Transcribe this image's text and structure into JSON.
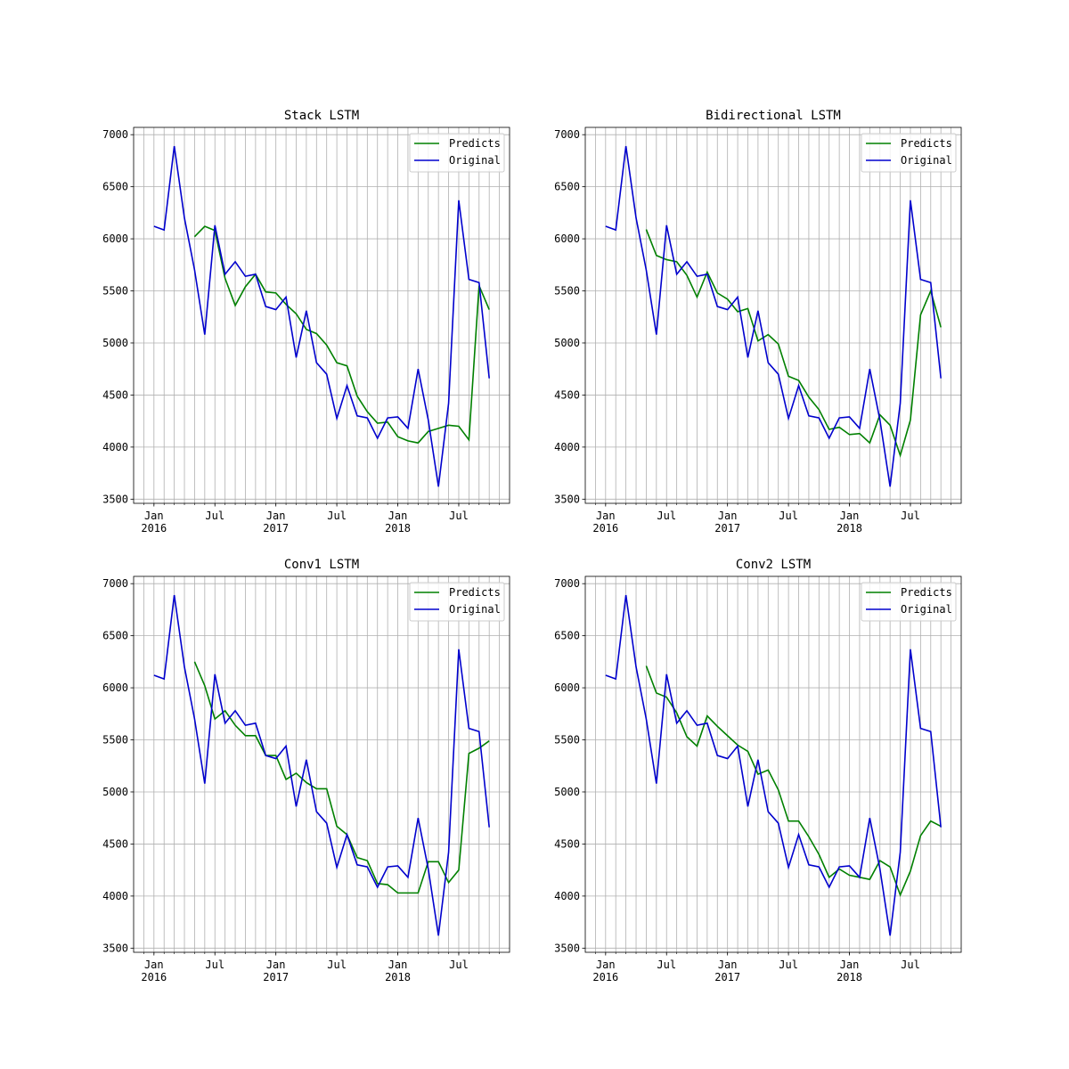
{
  "chart_data": [
    {
      "type": "line",
      "title": "Stack LSTM",
      "x": [
        "2016-01",
        "2016-02",
        "2016-03",
        "2016-04",
        "2016-05",
        "2016-06",
        "2016-07",
        "2016-08",
        "2016-09",
        "2016-10",
        "2016-11",
        "2016-12",
        "2017-01",
        "2017-02",
        "2017-03",
        "2017-04",
        "2017-05",
        "2017-06",
        "2017-07",
        "2017-08",
        "2017-09",
        "2017-10",
        "2017-11",
        "2017-12",
        "2018-01",
        "2018-02",
        "2018-03",
        "2018-04",
        "2018-05",
        "2018-06",
        "2018-07",
        "2018-08",
        "2018-09",
        "2018-10"
      ],
      "series": [
        {
          "name": "Predicts",
          "color": "#008000",
          "values": [
            null,
            null,
            null,
            null,
            6020,
            6120,
            6080,
            5620,
            5360,
            5540,
            5660,
            5490,
            5480,
            5370,
            5280,
            5130,
            5090,
            4980,
            4810,
            4780,
            4490,
            4340,
            4230,
            4240,
            4100,
            4060,
            4040,
            4150,
            4180,
            4210,
            4200,
            4070,
            5550,
            5320
          ]
        },
        {
          "name": "Original",
          "color": "#0000cd",
          "values": [
            6120,
            6085,
            6890,
            6200,
            5700,
            5080,
            6130,
            5660,
            5780,
            5640,
            5660,
            5350,
            5320,
            5440,
            4860,
            5310,
            4810,
            4700,
            4275,
            4590,
            4300,
            4280,
            4085,
            4280,
            4290,
            4180,
            4750,
            4260,
            3620,
            4420,
            6370,
            5610,
            5580,
            4660
          ]
        }
      ],
      "xlim": [
        "2015-11",
        "2018-12"
      ],
      "xticks": [
        {
          "value": "2016-01",
          "label": "Jan\n2016"
        },
        {
          "value": "2016-07",
          "label": "Jul"
        },
        {
          "value": "2017-01",
          "label": "Jan\n2017"
        },
        {
          "value": "2017-07",
          "label": "Jul"
        },
        {
          "value": "2018-01",
          "label": "Jan\n2018"
        },
        {
          "value": "2018-07",
          "label": "Jul"
        }
      ],
      "xticks_minor": [
        "2015-12",
        "2016-01",
        "2016-02",
        "2016-03",
        "2016-04",
        "2016-05",
        "2016-06",
        "2016-07",
        "2016-08",
        "2016-09",
        "2016-10",
        "2016-11",
        "2016-12",
        "2017-01",
        "2017-02",
        "2017-03",
        "2017-04",
        "2017-05",
        "2017-06",
        "2017-07",
        "2017-08",
        "2017-09",
        "2017-10",
        "2017-11",
        "2017-12",
        "2018-01",
        "2018-02",
        "2018-03",
        "2018-04",
        "2018-05",
        "2018-06",
        "2018-07",
        "2018-08",
        "2018-09",
        "2018-10",
        "2018-11"
      ],
      "ylim": [
        3460,
        7070
      ],
      "yticks": [
        3500,
        4000,
        4500,
        5000,
        5500,
        6000,
        6500,
        7000
      ],
      "grid": true,
      "legend": "upper right"
    },
    {
      "type": "line",
      "title": "Bidirectional LSTM",
      "x": [
        "2016-01",
        "2016-02",
        "2016-03",
        "2016-04",
        "2016-05",
        "2016-06",
        "2016-07",
        "2016-08",
        "2016-09",
        "2016-10",
        "2016-11",
        "2016-12",
        "2017-01",
        "2017-02",
        "2017-03",
        "2017-04",
        "2017-05",
        "2017-06",
        "2017-07",
        "2017-08",
        "2017-09",
        "2017-10",
        "2017-11",
        "2017-12",
        "2018-01",
        "2018-02",
        "2018-03",
        "2018-04",
        "2018-05",
        "2018-06",
        "2018-07",
        "2018-08",
        "2018-09",
        "2018-10"
      ],
      "series": [
        {
          "name": "Predicts",
          "color": "#008000",
          "values": [
            null,
            null,
            null,
            null,
            6090,
            5840,
            5800,
            5780,
            5650,
            5440,
            5680,
            5480,
            5420,
            5300,
            5330,
            5020,
            5080,
            4990,
            4680,
            4640,
            4480,
            4360,
            4170,
            4190,
            4120,
            4130,
            4040,
            4310,
            4210,
            3920,
            4260,
            5270,
            5500,
            5150
          ]
        },
        {
          "name": "Original",
          "color": "#0000cd",
          "values": [
            6120,
            6085,
            6890,
            6200,
            5700,
            5080,
            6130,
            5660,
            5780,
            5640,
            5660,
            5350,
            5320,
            5440,
            4860,
            5310,
            4810,
            4700,
            4275,
            4590,
            4300,
            4280,
            4085,
            4280,
            4290,
            4180,
            4750,
            4260,
            3620,
            4420,
            6370,
            5610,
            5580,
            4660
          ]
        }
      ],
      "xlim": [
        "2015-11",
        "2018-12"
      ],
      "xticks": [
        {
          "value": "2016-01",
          "label": "Jan\n2016"
        },
        {
          "value": "2016-07",
          "label": "Jul"
        },
        {
          "value": "2017-01",
          "label": "Jan\n2017"
        },
        {
          "value": "2017-07",
          "label": "Jul"
        },
        {
          "value": "2018-01",
          "label": "Jan\n2018"
        },
        {
          "value": "2018-07",
          "label": "Jul"
        }
      ],
      "xticks_minor": [
        "2015-12",
        "2016-01",
        "2016-02",
        "2016-03",
        "2016-04",
        "2016-05",
        "2016-06",
        "2016-07",
        "2016-08",
        "2016-09",
        "2016-10",
        "2016-11",
        "2016-12",
        "2017-01",
        "2017-02",
        "2017-03",
        "2017-04",
        "2017-05",
        "2017-06",
        "2017-07",
        "2017-08",
        "2017-09",
        "2017-10",
        "2017-11",
        "2017-12",
        "2018-01",
        "2018-02",
        "2018-03",
        "2018-04",
        "2018-05",
        "2018-06",
        "2018-07",
        "2018-08",
        "2018-09",
        "2018-10",
        "2018-11"
      ],
      "ylim": [
        3460,
        7070
      ],
      "yticks": [
        3500,
        4000,
        4500,
        5000,
        5500,
        6000,
        6500,
        7000
      ],
      "grid": true,
      "legend": "upper right"
    },
    {
      "type": "line",
      "title": "Conv1 LSTM",
      "x": [
        "2016-01",
        "2016-02",
        "2016-03",
        "2016-04",
        "2016-05",
        "2016-06",
        "2016-07",
        "2016-08",
        "2016-09",
        "2016-10",
        "2016-11",
        "2016-12",
        "2017-01",
        "2017-02",
        "2017-03",
        "2017-04",
        "2017-05",
        "2017-06",
        "2017-07",
        "2017-08",
        "2017-09",
        "2017-10",
        "2017-11",
        "2017-12",
        "2018-01",
        "2018-02",
        "2018-03",
        "2018-04",
        "2018-05",
        "2018-06",
        "2018-07",
        "2018-08",
        "2018-09",
        "2018-10"
      ],
      "series": [
        {
          "name": "Predicts",
          "color": "#008000",
          "values": [
            null,
            null,
            null,
            null,
            6250,
            6020,
            5700,
            5780,
            5640,
            5540,
            5540,
            5350,
            5350,
            5120,
            5180,
            5090,
            5030,
            5030,
            4670,
            4590,
            4370,
            4340,
            4120,
            4110,
            4030,
            4030,
            4030,
            4330,
            4330,
            4130,
            4250,
            5370,
            5420,
            5490
          ]
        },
        {
          "name": "Original",
          "color": "#0000cd",
          "values": [
            6120,
            6085,
            6890,
            6200,
            5700,
            5080,
            6130,
            5660,
            5780,
            5640,
            5660,
            5350,
            5320,
            5440,
            4860,
            5310,
            4810,
            4700,
            4275,
            4590,
            4300,
            4280,
            4085,
            4280,
            4290,
            4180,
            4750,
            4260,
            3620,
            4420,
            6370,
            5610,
            5580,
            4660
          ]
        }
      ],
      "xlim": [
        "2015-11",
        "2018-12"
      ],
      "xticks": [
        {
          "value": "2016-01",
          "label": "Jan\n2016"
        },
        {
          "value": "2016-07",
          "label": "Jul"
        },
        {
          "value": "2017-01",
          "label": "Jan\n2017"
        },
        {
          "value": "2017-07",
          "label": "Jul"
        },
        {
          "value": "2018-01",
          "label": "Jan\n2018"
        },
        {
          "value": "2018-07",
          "label": "Jul"
        }
      ],
      "xticks_minor": [
        "2015-12",
        "2016-01",
        "2016-02",
        "2016-03",
        "2016-04",
        "2016-05",
        "2016-06",
        "2016-07",
        "2016-08",
        "2016-09",
        "2016-10",
        "2016-11",
        "2016-12",
        "2017-01",
        "2017-02",
        "2017-03",
        "2017-04",
        "2017-05",
        "2017-06",
        "2017-07",
        "2017-08",
        "2017-09",
        "2017-10",
        "2017-11",
        "2017-12",
        "2018-01",
        "2018-02",
        "2018-03",
        "2018-04",
        "2018-05",
        "2018-06",
        "2018-07",
        "2018-08",
        "2018-09",
        "2018-10",
        "2018-11"
      ],
      "ylim": [
        3460,
        7070
      ],
      "yticks": [
        3500,
        4000,
        4500,
        5000,
        5500,
        6000,
        6500,
        7000
      ],
      "grid": true,
      "legend": "upper right"
    },
    {
      "type": "line",
      "title": "Conv2 LSTM",
      "x": [
        "2016-01",
        "2016-02",
        "2016-03",
        "2016-04",
        "2016-05",
        "2016-06",
        "2016-07",
        "2016-08",
        "2016-09",
        "2016-10",
        "2016-11",
        "2016-12",
        "2017-01",
        "2017-02",
        "2017-03",
        "2017-04",
        "2017-05",
        "2017-06",
        "2017-07",
        "2017-08",
        "2017-09",
        "2017-10",
        "2017-11",
        "2017-12",
        "2018-01",
        "2018-02",
        "2018-03",
        "2018-04",
        "2018-05",
        "2018-06",
        "2018-07",
        "2018-08",
        "2018-09",
        "2018-10"
      ],
      "series": [
        {
          "name": "Predicts",
          "color": "#008000",
          "values": [
            null,
            null,
            null,
            null,
            6210,
            5950,
            5910,
            5760,
            5530,
            5440,
            5730,
            5630,
            5540,
            5450,
            5390,
            5170,
            5210,
            5020,
            4720,
            4720,
            4570,
            4400,
            4180,
            4260,
            4200,
            4180,
            4160,
            4340,
            4280,
            4010,
            4240,
            4580,
            4720,
            4670
          ]
        },
        {
          "name": "Original",
          "color": "#0000cd",
          "values": [
            6120,
            6085,
            6890,
            6200,
            5700,
            5080,
            6130,
            5660,
            5780,
            5640,
            5660,
            5350,
            5320,
            5440,
            4860,
            5310,
            4810,
            4700,
            4275,
            4590,
            4300,
            4280,
            4085,
            4280,
            4290,
            4180,
            4750,
            4260,
            3620,
            4420,
            6370,
            5610,
            5580,
            4660
          ]
        }
      ],
      "xlim": [
        "2015-11",
        "2018-12"
      ],
      "xticks": [
        {
          "value": "2016-01",
          "label": "Jan\n2016"
        },
        {
          "value": "2016-07",
          "label": "Jul"
        },
        {
          "value": "2017-01",
          "label": "Jan\n2017"
        },
        {
          "value": "2017-07",
          "label": "Jul"
        },
        {
          "value": "2018-01",
          "label": "Jan\n2018"
        },
        {
          "value": "2018-07",
          "label": "Jul"
        }
      ],
      "xticks_minor": [
        "2015-12",
        "2016-01",
        "2016-02",
        "2016-03",
        "2016-04",
        "2016-05",
        "2016-06",
        "2016-07",
        "2016-08",
        "2016-09",
        "2016-10",
        "2016-11",
        "2016-12",
        "2017-01",
        "2017-02",
        "2017-03",
        "2017-04",
        "2017-05",
        "2017-06",
        "2017-07",
        "2017-08",
        "2017-09",
        "2017-10",
        "2017-11",
        "2017-12",
        "2018-01",
        "2018-02",
        "2018-03",
        "2018-04",
        "2018-05",
        "2018-06",
        "2018-07",
        "2018-08",
        "2018-09",
        "2018-10",
        "2018-11"
      ],
      "ylim": [
        3460,
        7070
      ],
      "yticks": [
        3500,
        4000,
        4500,
        5000,
        5500,
        6000,
        6500,
        7000
      ],
      "grid": true,
      "legend": "upper right"
    }
  ]
}
